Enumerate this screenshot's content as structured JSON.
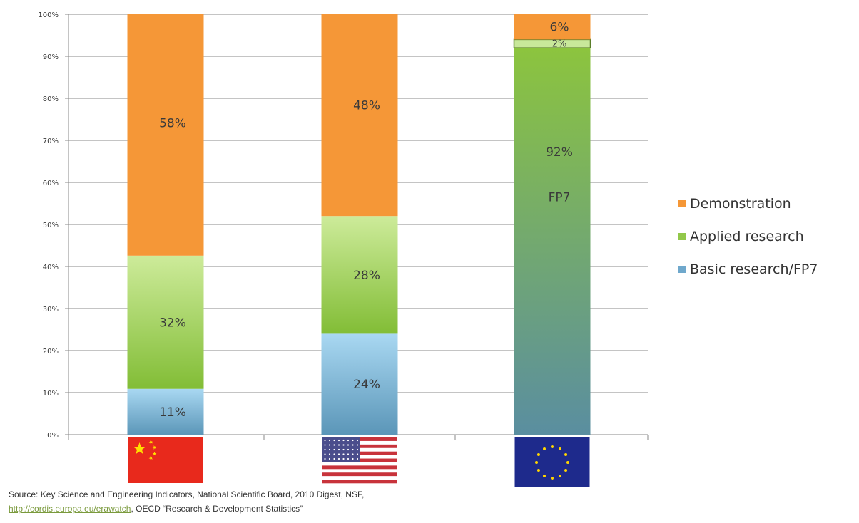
{
  "chart_data": {
    "type": "bar",
    "stacked": true,
    "categories": [
      "China",
      "USA",
      "EU"
    ],
    "category_labels_shown_as": "flags",
    "category_flags": [
      "china-flag-icon",
      "usa-flag-icon",
      "eu-flag-icon"
    ],
    "series": [
      {
        "name": "Basic research/FP7",
        "values": [
          11,
          24,
          92
        ],
        "color": "#6fa8cc"
      },
      {
        "name": "Applied research",
        "values": [
          32,
          28,
          2
        ],
        "color": "#92c84a"
      },
      {
        "name": "Demonstration",
        "values": [
          58,
          48,
          6
        ],
        "color": "#f59737"
      }
    ],
    "segment_labels": [
      [
        "11%",
        "32%",
        "58%"
      ],
      [
        "24%",
        "28%",
        "48%"
      ],
      [
        "92%",
        "2%",
        "6%"
      ]
    ],
    "eu_bar_label": "FP7",
    "y_ticks": [
      "0%",
      "10%",
      "20%",
      "30%",
      "40%",
      "50%",
      "60%",
      "70%",
      "80%",
      "90%",
      "100%"
    ],
    "ylim": [
      0,
      100
    ],
    "grid": true,
    "legend_position": "right",
    "legend": [
      "Demonstration",
      "Applied research",
      "Basic research/FP7"
    ]
  },
  "source": {
    "line1": "Source: Key Science and Engineering Indicators, National Scientific Board, 2010 Digest, NSF,",
    "link": "http://cordis.europa.eu/erawatch",
    "line2_rest": ", OECD “Research & Development Statistics”"
  }
}
